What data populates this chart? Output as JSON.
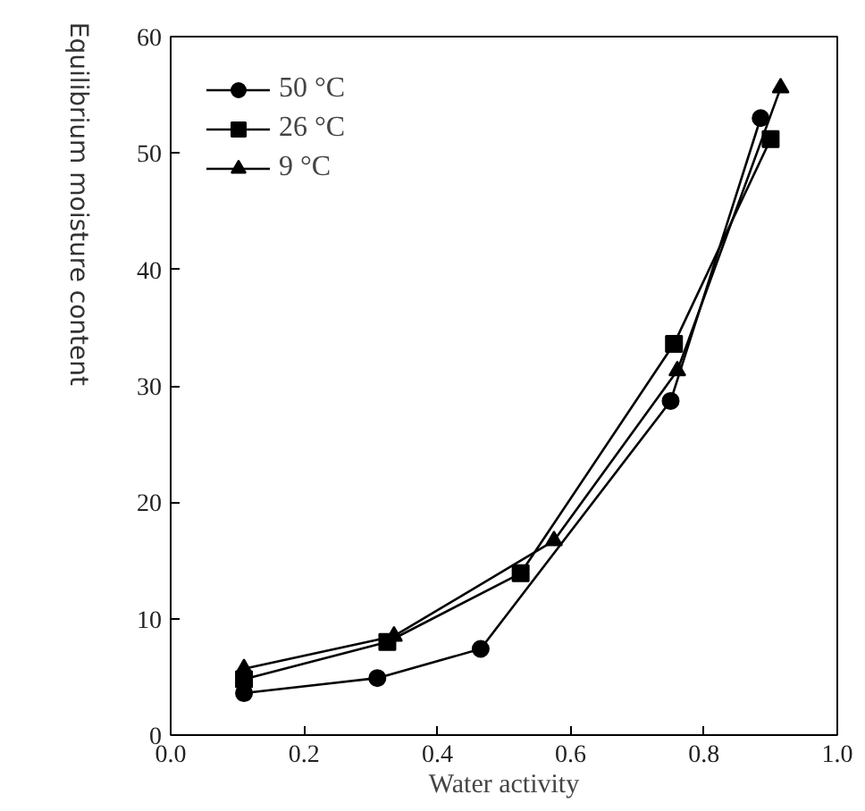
{
  "chart_data": {
    "type": "line",
    "xlabel": "Water activity",
    "ylabel": "Equilibrium moisture content",
    "xlim": [
      0.0,
      1.0
    ],
    "xticks": [
      {
        "value": 0,
        "label": "0.0"
      },
      {
        "value": 0.2,
        "label": "0.2"
      },
      {
        "value": 0.4,
        "label": "0.4"
      },
      {
        "value": 0.6,
        "label": "0.6"
      },
      {
        "value": 0.8,
        "label": "0.8"
      },
      {
        "value": 1,
        "label": "1.0"
      }
    ],
    "ylim": [
      0,
      60
    ],
    "yticks": [
      0,
      10,
      20,
      30,
      40,
      50,
      60
    ],
    "grid": false,
    "legend": "top left",
    "line_style": "solid",
    "series": [
      {
        "name": "50 °C",
        "color": "#000000",
        "marker": "circle",
        "x": [
          0.11,
          0.31,
          0.465,
          0.75,
          0.885
        ],
        "values": [
          3.6,
          4.9,
          7.4,
          28.7,
          53.0
        ]
      },
      {
        "name": "26 °C",
        "color": "#000000",
        "marker": "square",
        "x": [
          0.11,
          0.325,
          0.525,
          0.755,
          0.9
        ],
        "values": [
          4.8,
          8.0,
          13.9,
          33.6,
          51.2
        ]
      },
      {
        "name": "9 °C",
        "color": "#000000",
        "marker": "triangle",
        "x": [
          0.11,
          0.335,
          0.575,
          0.76,
          0.915
        ],
        "values": [
          5.7,
          8.5,
          16.7,
          31.3,
          55.6
        ]
      }
    ]
  }
}
